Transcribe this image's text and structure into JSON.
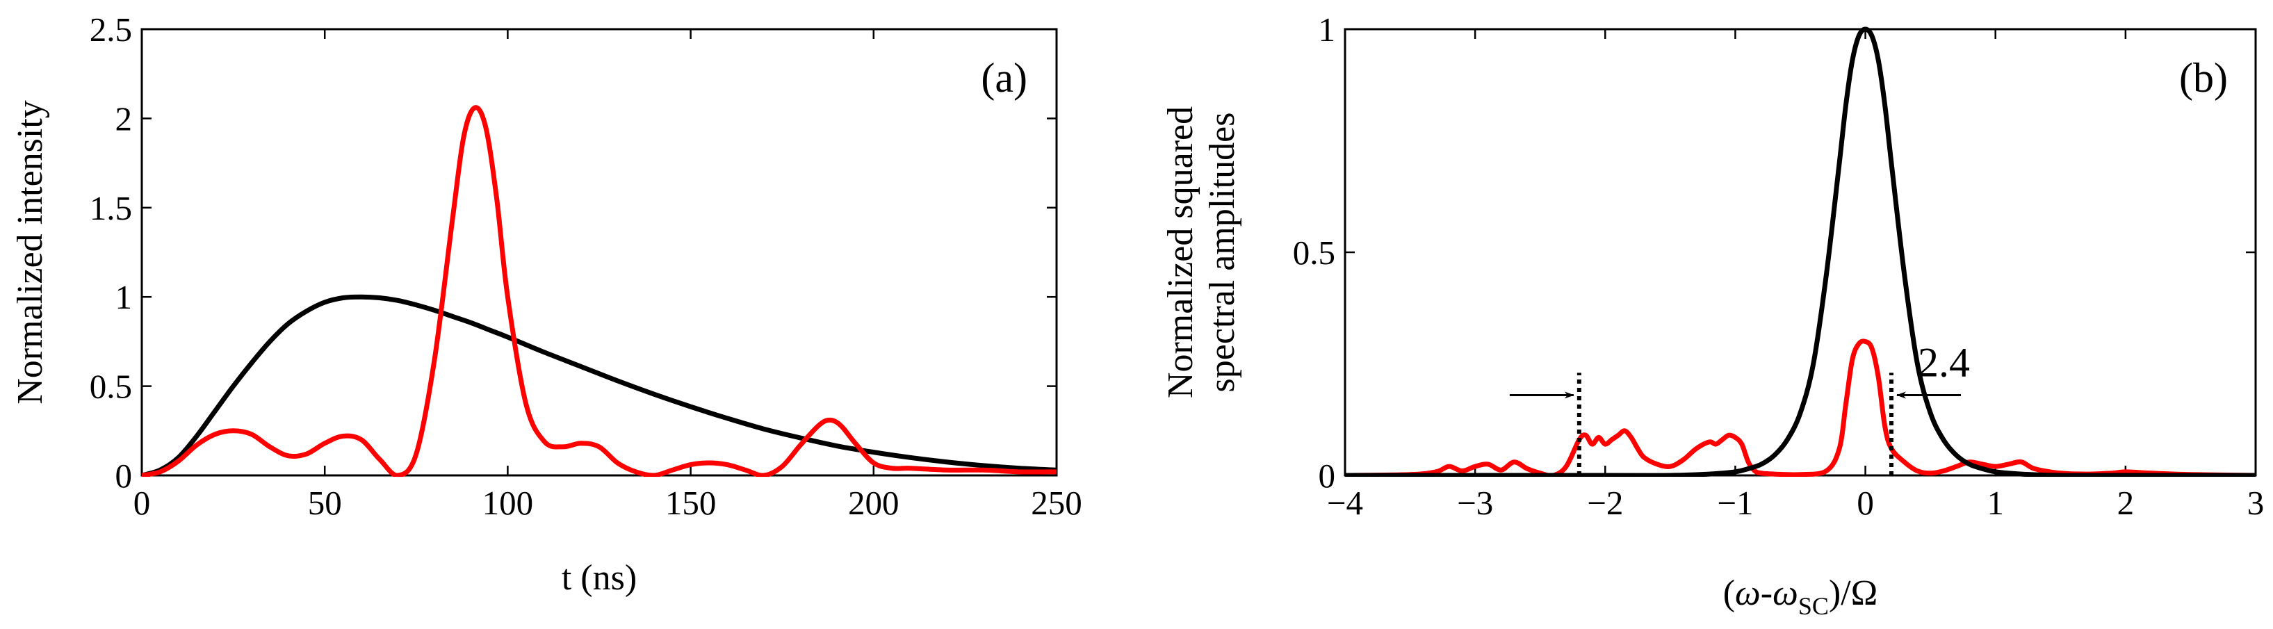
{
  "chart_data": [
    {
      "panel": "(a)",
      "type": "line",
      "xlabel": "t (ns)",
      "ylabel": "Normalized intensity",
      "xlim": [
        0,
        250
      ],
      "ylim": [
        0,
        2.5
      ],
      "xticks": [
        0,
        50,
        100,
        150,
        200,
        250
      ],
      "yticks": [
        0,
        0.5,
        1,
        1.5,
        2,
        2.5
      ],
      "xtick_labels": [
        "0",
        "50",
        "100",
        "150",
        "200",
        "250"
      ],
      "ytick_labels": [
        "0",
        "0.5",
        "1",
        "1.5",
        "2",
        "2.5"
      ],
      "series": [
        {
          "name": "black",
          "color": "#000000",
          "x": [
            0,
            5,
            10,
            15,
            20,
            25,
            30,
            35,
            40,
            45,
            50,
            55,
            60,
            65,
            70,
            75,
            80,
            85,
            90,
            95,
            100,
            110,
            120,
            130,
            140,
            150,
            160,
            170,
            180,
            190,
            200,
            210,
            220,
            230,
            240,
            250
          ],
          "y": [
            0,
            0.03,
            0.1,
            0.22,
            0.36,
            0.5,
            0.63,
            0.75,
            0.85,
            0.92,
            0.97,
            0.995,
            1.0,
            0.995,
            0.98,
            0.955,
            0.925,
            0.89,
            0.855,
            0.815,
            0.775,
            0.69,
            0.61,
            0.53,
            0.455,
            0.385,
            0.32,
            0.26,
            0.21,
            0.165,
            0.13,
            0.1,
            0.075,
            0.055,
            0.04,
            0.03
          ]
        },
        {
          "name": "red",
          "color": "#ff0000",
          "x": [
            0,
            5,
            10,
            15,
            20,
            25,
            30,
            35,
            40,
            45,
            50,
            55,
            60,
            65,
            70,
            75,
            80,
            85,
            88,
            91,
            94,
            97,
            100,
            105,
            110,
            115,
            120,
            125,
            130,
            135,
            140,
            145,
            150,
            155,
            160,
            165,
            170,
            175,
            180,
            185,
            188,
            191,
            195,
            200,
            205,
            210,
            220,
            230,
            240,
            250
          ],
          "y": [
            0,
            0.02,
            0.08,
            0.17,
            0.23,
            0.25,
            0.23,
            0.16,
            0.11,
            0.12,
            0.18,
            0.22,
            0.2,
            0.09,
            0.0,
            0.12,
            0.65,
            1.45,
            1.9,
            2.06,
            1.95,
            1.55,
            1.0,
            0.4,
            0.19,
            0.16,
            0.18,
            0.16,
            0.07,
            0.02,
            0.0,
            0.03,
            0.06,
            0.07,
            0.06,
            0.03,
            0.0,
            0.05,
            0.17,
            0.28,
            0.31,
            0.28,
            0.18,
            0.07,
            0.04,
            0.04,
            0.03,
            0.03,
            0.02,
            0.02
          ]
        }
      ]
    },
    {
      "panel": "(b)",
      "type": "line",
      "xlabel": "(ω-ω_SC)/Ω",
      "xlabel_parts": {
        "pre": "(",
        "omega": "ω",
        "dash": "-",
        "omega2": "ω",
        "sub": "SC",
        "post": ")/Ω"
      },
      "ylabel": [
        "Normalized squared",
        "spectral amplitudes"
      ],
      "xlim": [
        -4,
        3
      ],
      "ylim": [
        0,
        1
      ],
      "xticks": [
        -4,
        -3,
        -2,
        -1,
        0,
        1,
        2,
        3
      ],
      "yticks": [
        0,
        0.5,
        1
      ],
      "xtick_labels": [
        "−4",
        "−3",
        "−2",
        "−1",
        "0",
        "1",
        "2",
        "3"
      ],
      "ytick_labels": [
        "0",
        "0.5",
        "1"
      ],
      "annotation": "2.4",
      "dotted_lines_x": [
        -2.2,
        0.2
      ],
      "series": [
        {
          "name": "black",
          "color": "#000000",
          "x": [
            -4,
            -2,
            -1.5,
            -1.2,
            -1.0,
            -0.9,
            -0.8,
            -0.7,
            -0.6,
            -0.5,
            -0.4,
            -0.3,
            -0.2,
            -0.15,
            -0.1,
            -0.05,
            0,
            0.05,
            0.1,
            0.15,
            0.2,
            0.3,
            0.4,
            0.5,
            0.6,
            0.7,
            0.8,
            0.9,
            1.0,
            1.2,
            1.5,
            2,
            3
          ],
          "y": [
            0,
            0,
            0,
            0.003,
            0.008,
            0.015,
            0.025,
            0.045,
            0.08,
            0.14,
            0.25,
            0.45,
            0.7,
            0.83,
            0.93,
            0.985,
            1.0,
            0.985,
            0.93,
            0.83,
            0.7,
            0.45,
            0.25,
            0.14,
            0.08,
            0.045,
            0.025,
            0.015,
            0.008,
            0.003,
            0,
            0,
            0
          ]
        },
        {
          "name": "red",
          "color": "#ff0000",
          "x": [
            -4,
            -3.5,
            -3.3,
            -3.2,
            -3.1,
            -3.0,
            -2.9,
            -2.8,
            -2.7,
            -2.6,
            -2.5,
            -2.4,
            -2.3,
            -2.2,
            -2.15,
            -2.1,
            -2.05,
            -2.0,
            -1.95,
            -1.9,
            -1.85,
            -1.8,
            -1.75,
            -1.7,
            -1.6,
            -1.5,
            -1.4,
            -1.3,
            -1.2,
            -1.15,
            -1.1,
            -1.05,
            -1.0,
            -0.95,
            -0.9,
            -0.85,
            -0.8,
            -0.7,
            -0.5,
            -0.3,
            -0.2,
            -0.15,
            -0.1,
            -0.05,
            0,
            0.05,
            0.1,
            0.15,
            0.2,
            0.3,
            0.4,
            0.5,
            0.6,
            0.7,
            0.8,
            0.9,
            1.0,
            1.1,
            1.2,
            1.3,
            1.5,
            1.7,
            1.9,
            2.0,
            2.2,
            2.5,
            3
          ],
          "y": [
            0,
            0.002,
            0.008,
            0.02,
            0.01,
            0.02,
            0.025,
            0.012,
            0.03,
            0.015,
            0.005,
            0.0,
            0.02,
            0.08,
            0.09,
            0.07,
            0.085,
            0.07,
            0.08,
            0.09,
            0.1,
            0.085,
            0.06,
            0.04,
            0.025,
            0.02,
            0.035,
            0.06,
            0.075,
            0.07,
            0.08,
            0.09,
            0.085,
            0.07,
            0.03,
            0.01,
            0.005,
            0.003,
            0.002,
            0.01,
            0.06,
            0.16,
            0.26,
            0.295,
            0.3,
            0.285,
            0.22,
            0.11,
            0.06,
            0.03,
            0.01,
            0.005,
            0.01,
            0.02,
            0.03,
            0.025,
            0.02,
            0.025,
            0.03,
            0.015,
            0.005,
            0.003,
            0.005,
            0.008,
            0.005,
            0.002,
            0
          ]
        }
      ]
    }
  ],
  "colors": {
    "red": "#ff0000",
    "black": "#000000"
  }
}
